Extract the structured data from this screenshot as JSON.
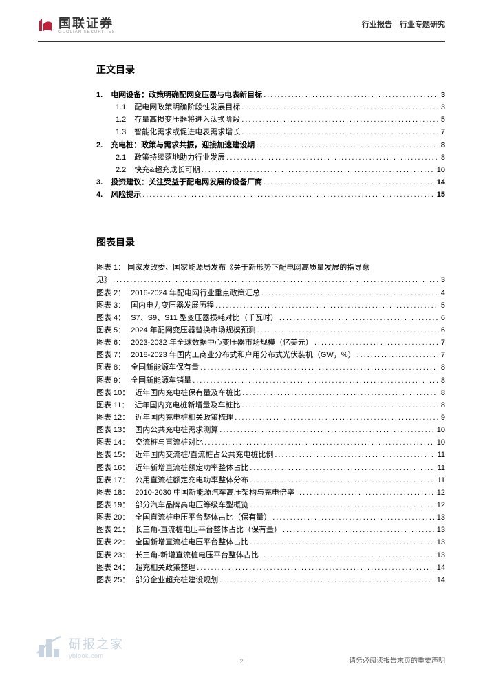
{
  "header": {
    "logo_cn": "国联证券",
    "logo_en": "GUOLIAN SECURITIES",
    "right_text": "行业报告｜行业专题研究",
    "logo_color": "#c41e3a"
  },
  "main_toc": {
    "title": "正文目录",
    "items": [
      {
        "num": "1.",
        "label": "电网设备：政策明确配网变压器与电表新目标",
        "page": "3",
        "bold": true
      },
      {
        "num": "1.1",
        "label": "配电网政策明确阶段性发展目标",
        "page": "3",
        "sub": true
      },
      {
        "num": "1.2",
        "label": "存量高损变压器将进入汰换阶段",
        "page": "5",
        "sub": true
      },
      {
        "num": "1.3",
        "label": "智能化需求或促进电表需求增长",
        "page": "7",
        "sub": true
      },
      {
        "num": "2.",
        "label": "充电桩：政策与需求共振，迎接加速建设期",
        "page": "8",
        "bold": true
      },
      {
        "num": "2.1",
        "label": "政策持续落地助力行业发展",
        "page": "8",
        "sub": true
      },
      {
        "num": "2.2",
        "label": "快充&超充成长可期",
        "page": "10",
        "sub": true
      },
      {
        "num": "3.",
        "label": "投资建议：关注受益于配电网发展的设备厂商",
        "page": "14",
        "bold": true
      },
      {
        "num": "4.",
        "label": "风险提示",
        "page": "15",
        "bold": true
      }
    ]
  },
  "fig_toc": {
    "title": "图表目录",
    "items": [
      {
        "prefix": "图表 1：",
        "label_wrap1": "国家发改委、国家能源局发布《关于新形势下配电网高质量发展的指导意",
        "label_wrap2": "见》",
        "page": "3",
        "wrapped": true
      },
      {
        "prefix": "图表 2：",
        "label": "2016-2024 年配电网行业重点政策汇总",
        "page": "4"
      },
      {
        "prefix": "图表 3：",
        "label": "国内电力变压器发展历程",
        "page": "5"
      },
      {
        "prefix": "图表 4：",
        "label": "S7、S9、S11 型变压器损耗对比（千瓦时）",
        "page": "6"
      },
      {
        "prefix": "图表 5：",
        "label": "2024 年配网变压器替换市场规模预测",
        "page": "6"
      },
      {
        "prefix": "图表 6：",
        "label": "2023-2032 年全球数据中心变压器市场规模（亿美元）",
        "page": "7"
      },
      {
        "prefix": "图表 7：",
        "label": "2018-2023 年国内工商业分布式和户用分布式光伏装机（GW，%）",
        "page": "7"
      },
      {
        "prefix": "图表 8：",
        "label": "全国新能源车保有量",
        "page": "8"
      },
      {
        "prefix": "图表 9：",
        "label": "全国新能源车销量",
        "page": "8"
      },
      {
        "prefix": "图表 10：",
        "label": "近年国内充电桩保有量及车桩比",
        "page": "8"
      },
      {
        "prefix": "图表 11：",
        "label": "近年国内充电桩新增量及车桩比",
        "page": "8"
      },
      {
        "prefix": "图表 12：",
        "label": "近年国内充电桩相关政策梳理",
        "page": "9"
      },
      {
        "prefix": "图表 13：",
        "label": "国内公共充电桩需求测算",
        "page": "10"
      },
      {
        "prefix": "图表 14：",
        "label": "交流桩与直流桩对比",
        "page": "10"
      },
      {
        "prefix": "图表 15：",
        "label": "近年国内交流桩/直流桩占公共充电桩比例",
        "page": "11"
      },
      {
        "prefix": "图表 16：",
        "label": "近年新增直流桩额定功率整体占比",
        "page": "11"
      },
      {
        "prefix": "图表 17：",
        "label": "公用直流桩额定充电功率整体分布",
        "page": "11"
      },
      {
        "prefix": "图表 18：",
        "label": "2010-2030 中国新能源汽车高压架构与充电倍率",
        "page": "12"
      },
      {
        "prefix": "图表 19：",
        "label": "部分汽车品牌高电压等级车型概览",
        "page": "12"
      },
      {
        "prefix": "图表 20：",
        "label": "全国直流桩电压平台整体占比（保有量）",
        "page": "13"
      },
      {
        "prefix": "图表 21：",
        "label": "长三角-直流桩电压平台整体占比（保有量）",
        "page": "13"
      },
      {
        "prefix": "图表 22：",
        "label": "全国新增直流桩电压平台整体占比",
        "page": "13"
      },
      {
        "prefix": "图表 23：",
        "label": "长三角-新增直流桩电压平台整体占比",
        "page": "13"
      },
      {
        "prefix": "图表 24：",
        "label": "超充相关政策整理",
        "page": "14"
      },
      {
        "prefix": "图表 25：",
        "label": "部分企业超充桩建设规划",
        "page": "14"
      }
    ]
  },
  "watermark": {
    "cn": "研报之家",
    "en": "yblook.com",
    "color": "#2a5a8a"
  },
  "footer": {
    "text": "请务必阅读报告末页的重要声明",
    "page_number": "2"
  }
}
